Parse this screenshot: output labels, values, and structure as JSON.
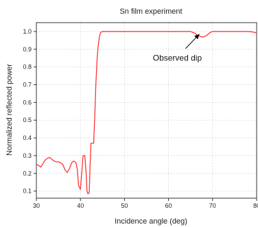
{
  "chart_data": {
    "type": "line",
    "title": "Sn film  experiment",
    "xlabel": "Incidence angle (deg)",
    "ylabel": "Normalized reflected power",
    "xlim": [
      30,
      80
    ],
    "ylim": [
      0.06,
      1.05
    ],
    "xticks": [
      30,
      40,
      50,
      60,
      70,
      80
    ],
    "yticks": [
      0.1,
      0.2,
      0.3,
      0.4,
      0.5,
      0.6,
      0.7,
      0.8,
      0.9,
      1.0
    ],
    "xtick_labels": [
      "30",
      "40",
      "50",
      "60",
      "70",
      "80"
    ],
    "ytick_labels": [
      "0.1",
      "0.2",
      "0.3",
      "0.4",
      "0.5",
      "0.6",
      "0.7",
      "0.8",
      "0.9",
      "1.0"
    ],
    "grid": true,
    "series": [
      {
        "color": "#ff3333",
        "x": [
          30,
          30.5,
          31,
          31.5,
          32,
          32.5,
          33,
          33.5,
          34,
          34.5,
          35,
          35.5,
          36,
          36.5,
          37,
          37.5,
          38,
          38.5,
          39,
          39.3,
          39.6,
          40,
          40.3,
          40.6,
          41,
          41.3,
          41.5,
          41.7,
          42,
          42.2,
          42.4,
          42.6,
          43,
          43.3,
          43.5,
          43.8,
          44,
          44.3,
          44.6,
          45,
          46,
          48,
          50,
          55,
          60,
          63,
          65,
          65.5,
          66,
          66.5,
          67,
          67.5,
          68,
          68.5,
          69,
          69.5,
          70,
          72,
          75,
          78,
          79,
          80
        ],
        "y": [
          0.25,
          0.245,
          0.235,
          0.255,
          0.275,
          0.285,
          0.29,
          0.28,
          0.27,
          0.265,
          0.265,
          0.26,
          0.25,
          0.22,
          0.205,
          0.225,
          0.26,
          0.27,
          0.26,
          0.22,
          0.13,
          0.11,
          0.2,
          0.3,
          0.3,
          0.2,
          0.1,
          0.085,
          0.09,
          0.25,
          0.37,
          0.37,
          0.37,
          0.55,
          0.7,
          0.85,
          0.91,
          0.97,
          0.995,
          1.0,
          1.0,
          1.0,
          1.0,
          1.0,
          1.0,
          1.0,
          1.0,
          0.995,
          0.99,
          0.98,
          0.975,
          0.97,
          0.97,
          0.975,
          0.985,
          0.995,
          1.0,
          1.0,
          1.0,
          1.0,
          0.998,
          0.992
        ]
      }
    ],
    "annotations": [
      {
        "text": "Observed dip",
        "arrow_to": [
          67,
          0.985
        ],
        "text_at": [
          62,
          0.85
        ]
      }
    ]
  }
}
